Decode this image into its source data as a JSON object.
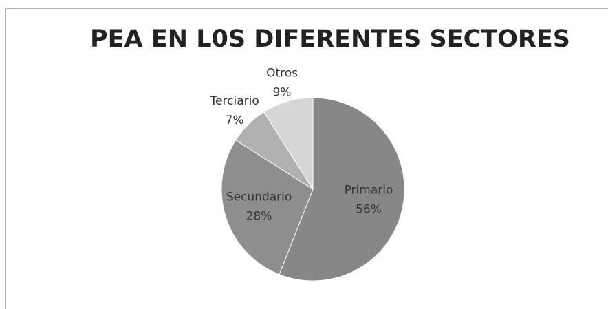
{
  "chart_data": {
    "type": "pie",
    "title": "PEA EN L0S DIFERENTES SECTORES",
    "categories": [
      "Primario",
      "Secundario",
      "Terciario",
      "Otros"
    ],
    "values": [
      56,
      28,
      7,
      9
    ],
    "value_labels": [
      "56%",
      "28%",
      "7%",
      "9%"
    ],
    "colors": [
      "#878787",
      "#8e8e8e",
      "#b1b1b1",
      "#d6d6d6"
    ]
  }
}
